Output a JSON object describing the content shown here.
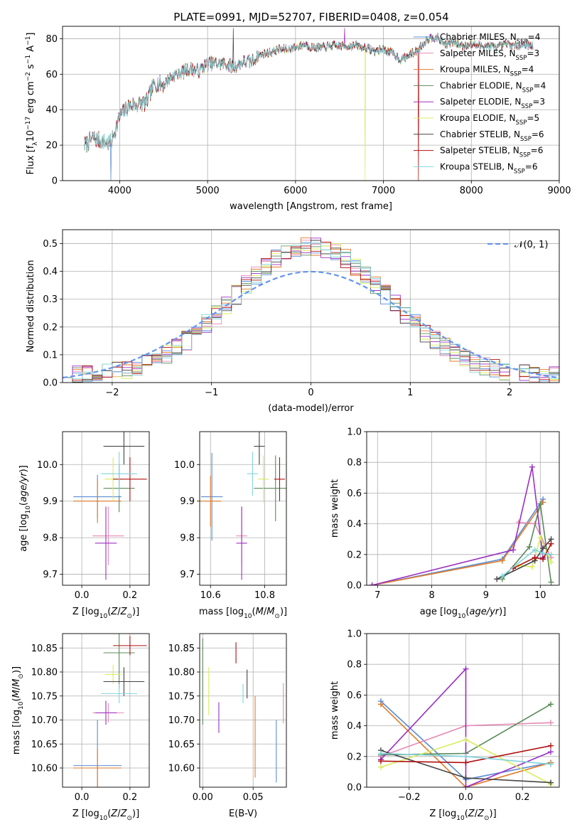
{
  "figure": {
    "title": "PLATE=0991, MJD=52707, FIBERID=0408, z=0.054"
  },
  "colors": {
    "Chabrier MILES": "#5b8bd6",
    "Salpeter MILES": "#e78ab5",
    "Kroupa MILES": "#e07b28",
    "Chabrier ELODIE": "#5a8a5a",
    "Salpeter ELODIE": "#9b2fc4",
    "Kroupa ELODIE": "#d8ec5a",
    "Chabrier STELIB": "#444444",
    "Salpeter STELIB": "#b01010",
    "Kroupa STELIB": "#80d4dc",
    "gaussian": "#6495ed"
  },
  "chart_data": [
    {
      "type": "line",
      "id": "spectrum",
      "xlabel": "wavelength [Angstrom, rest frame]",
      "ylabel": "Flux [fλ10⁻¹⁷ erg cm⁻² s⁻¹ A⁻¹]",
      "xlim": [
        3350,
        9000
      ],
      "ylim": [
        0,
        87
      ],
      "xticks": [
        4000,
        5000,
        6000,
        7000,
        8000,
        9000
      ],
      "yticks": [
        0,
        20,
        40,
        60,
        80
      ],
      "legend_loc": "upper right",
      "series": [
        {
          "name": "Chabrier MILES, N",
          "sub": "SSP",
          "suffix": "=4"
        },
        {
          "name": "Salpeter MILES, N",
          "sub": "SSP",
          "suffix": "=3"
        },
        {
          "name": "Kroupa MILES, N",
          "sub": "SSP",
          "suffix": "=4"
        },
        {
          "name": "Chabrier ELODIE, N",
          "sub": "SSP",
          "suffix": "=4"
        },
        {
          "name": "Salpeter ELODIE, N",
          "sub": "SSP",
          "suffix": "=3"
        },
        {
          "name": "Kroupa ELODIE, N",
          "sub": "SSP",
          "suffix": "=5"
        },
        {
          "name": "Chabrier STELIB, N",
          "sub": "SSP",
          "suffix": "=6"
        },
        {
          "name": "Salpeter STELIB, N",
          "sub": "SSP",
          "suffix": "=6"
        },
        {
          "name": "Kroupa STELIB, N",
          "sub": "SSP",
          "suffix": "=6"
        }
      ],
      "continuum": [
        [
          3600,
          20
        ],
        [
          3700,
          24
        ],
        [
          3800,
          22
        ],
        [
          3900,
          21
        ],
        [
          4000,
          36
        ],
        [
          4100,
          42
        ],
        [
          4200,
          43
        ],
        [
          4300,
          44
        ],
        [
          4400,
          55
        ],
        [
          4500,
          54
        ],
        [
          4600,
          59
        ],
        [
          4700,
          61
        ],
        [
          4800,
          63
        ],
        [
          4900,
          62
        ],
        [
          5000,
          66
        ],
        [
          5100,
          66
        ],
        [
          5200,
          66
        ],
        [
          5300,
          64
        ],
        [
          5400,
          67
        ],
        [
          5500,
          67
        ],
        [
          5600,
          71
        ],
        [
          5700,
          72
        ],
        [
          5800,
          74
        ],
        [
          5900,
          74
        ],
        [
          6000,
          75
        ],
        [
          6100,
          77
        ],
        [
          6200,
          75
        ],
        [
          6300,
          75
        ],
        [
          6400,
          76
        ],
        [
          6500,
          76
        ],
        [
          6600,
          76
        ],
        [
          6700,
          76
        ],
        [
          6800,
          75
        ],
        [
          6900,
          73
        ],
        [
          7000,
          74
        ],
        [
          7100,
          72
        ],
        [
          7200,
          68
        ],
        [
          7300,
          71
        ],
        [
          7400,
          74
        ],
        [
          7500,
          80
        ],
        [
          7600,
          81
        ],
        [
          7700,
          77
        ],
        [
          7800,
          78
        ],
        [
          7900,
          76
        ],
        [
          8000,
          77
        ],
        [
          8100,
          76
        ],
        [
          8200,
          76
        ],
        [
          8300,
          75
        ],
        [
          8400,
          77
        ],
        [
          8500,
          76
        ],
        [
          8600,
          77
        ],
        [
          8700,
          76
        ]
      ],
      "spikes": [
        {
          "x": 3900,
          "y": 0
        },
        {
          "x": 5290,
          "y": 86
        },
        {
          "x": 6560,
          "y": 86
        },
        {
          "x": 6790,
          "y": 0
        },
        {
          "x": 7400,
          "y": 0
        }
      ]
    },
    {
      "type": "step",
      "id": "residuals",
      "xlabel": "(data-model)/error",
      "ylabel": "Normed distribution",
      "xlim": [
        -2.5,
        2.5
      ],
      "ylim": [
        0,
        0.55
      ],
      "xticks": [
        -2,
        -1,
        0,
        1,
        2
      ],
      "yticks": [
        0.0,
        0.1,
        0.2,
        0.3,
        0.4,
        0.5
      ],
      "bin_edges_range": [
        -2.5,
        2.5
      ],
      "n_bins": 50,
      "legend": "𝒩(0, 1)",
      "gaussian": {
        "mu": 0,
        "sigma": 1
      }
    },
    {
      "type": "errorbar",
      "id": "age-vs-Z",
      "xlabel": "Z [log₁₀(Z/Z⊙)]",
      "ylabel": "age  [log₁₀(age/yr)]",
      "xlim": [
        -0.08,
        0.28
      ],
      "ylim": [
        9.67,
        10.09
      ],
      "xticks": [
        0.0,
        0.2
      ],
      "yticks": [
        9.7,
        9.8,
        9.9,
        10.0
      ],
      "points": [
        {
          "model": "Chabrier MILES",
          "x": 0.065,
          "xerr": 0.1,
          "y": 9.912,
          "yerr": 0.06
        },
        {
          "model": "Salpeter MILES",
          "x": 0.11,
          "xerr": 0.065,
          "y": 9.805,
          "yerr": 0.08
        },
        {
          "model": "Kroupa MILES",
          "x": 0.065,
          "xerr": 0.1,
          "y": 9.9,
          "yerr": 0.06
        },
        {
          "model": "Chabrier ELODIE",
          "x": 0.155,
          "xerr": 0.065,
          "y": 9.935,
          "yerr": 0.065
        },
        {
          "model": "Salpeter ELODIE",
          "x": 0.1,
          "xerr": 0.045,
          "y": 9.785,
          "yerr": 0.1
        },
        {
          "model": "Kroupa ELODIE",
          "x": 0.13,
          "xerr": 0.035,
          "y": 9.96,
          "yerr": 0.06
        },
        {
          "model": "Chabrier STELIB",
          "x": 0.175,
          "xerr": 0.085,
          "y": 10.05,
          "yerr": 0.05
        },
        {
          "model": "Salpeter STELIB",
          "x": 0.2,
          "xerr": 0.07,
          "y": 9.96,
          "yerr": 0.06
        },
        {
          "model": "Kroupa STELIB",
          "x": 0.155,
          "xerr": 0.075,
          "y": 9.975,
          "yerr": 0.06
        }
      ]
    },
    {
      "type": "errorbar",
      "id": "age-vs-mass",
      "xlabel": "mass [log₁₀(M/M⊙)]",
      "ylabel": "",
      "xlim": [
        10.56,
        10.88
      ],
      "ylim": [
        9.67,
        10.09
      ],
      "xticks": [
        10.6,
        10.8
      ],
      "yticks": [
        9.7,
        9.8,
        9.9,
        10.0
      ],
      "points": [
        {
          "model": "Chabrier MILES",
          "x": 10.605,
          "xerr": 0.04,
          "y": 9.912,
          "yerr": 0.12
        },
        {
          "model": "Salpeter MILES",
          "x": 10.715,
          "xerr": 0.02,
          "y": 9.805,
          "yerr": 0.08
        },
        {
          "model": "Kroupa MILES",
          "x": 10.6,
          "xerr": 0.04,
          "y": 9.9,
          "yerr": 0.07
        },
        {
          "model": "Chabrier ELODIE",
          "x": 10.84,
          "xerr": 0.08,
          "y": 9.935,
          "yerr": 0.09
        },
        {
          "model": "Salpeter ELODIE",
          "x": 10.715,
          "xerr": 0.02,
          "y": 9.785,
          "yerr": 0.1
        },
        {
          "model": "Kroupa ELODIE",
          "x": 10.795,
          "xerr": 0.02,
          "y": 9.96,
          "yerr": 0.065
        },
        {
          "model": "Chabrier STELIB",
          "x": 10.78,
          "xerr": 0.02,
          "y": 10.05,
          "yerr": 0.05
        },
        {
          "model": "Salpeter STELIB",
          "x": 10.855,
          "xerr": 0.02,
          "y": 9.96,
          "yerr": 0.06
        },
        {
          "model": "Kroupa STELIB",
          "x": 10.755,
          "xerr": 0.02,
          "y": 9.975,
          "yerr": 0.06
        }
      ]
    },
    {
      "type": "line",
      "id": "weight-vs-age",
      "xlabel": "age  [log₁₀(age/yr)]",
      "ylabel": "mass weight",
      "xlim": [
        6.8,
        10.35
      ],
      "ylim": [
        0,
        1.0
      ],
      "xticks": [
        7,
        8,
        9,
        10
      ],
      "yticks": [
        0.0,
        0.2,
        0.4,
        0.6,
        0.8,
        1.0
      ],
      "series": [
        {
          "model": "Chabrier MILES",
          "x": [
            6.9,
            9.3,
            10.05
          ],
          "y": [
            0.0,
            0.17,
            0.56
          ]
        },
        {
          "model": "Salpeter MILES",
          "x": [
            9.6,
            9.9,
            10.2
          ],
          "y": [
            0.41,
            0.4,
            0.18
          ]
        },
        {
          "model": "Kroupa MILES",
          "x": [
            6.9,
            9.3,
            10.05
          ],
          "y": [
            0.0,
            0.16,
            0.54
          ]
        },
        {
          "model": "Chabrier ELODIE",
          "x": [
            9.3,
            9.8,
            10.0,
            10.2
          ],
          "y": [
            0.04,
            0.25,
            0.53,
            0.02
          ]
        },
        {
          "model": "Salpeter ELODIE",
          "x": [
            6.9,
            9.5,
            9.85,
            10.05
          ],
          "y": [
            0.0,
            0.23,
            0.77,
            0.18
          ]
        },
        {
          "model": "Kroupa ELODIE",
          "x": [
            9.6,
            9.85,
            10.0,
            10.2
          ],
          "y": [
            0.13,
            0.12,
            0.31,
            0.15
          ]
        },
        {
          "model": "Chabrier STELIB",
          "x": [
            9.2,
            9.9,
            10.05,
            10.2
          ],
          "y": [
            0.04,
            0.16,
            0.24,
            0.3
          ]
        },
        {
          "model": "Salpeter STELIB",
          "x": [
            9.5,
            9.9,
            10.05,
            10.2
          ],
          "y": [
            0.11,
            0.18,
            0.17,
            0.27
          ]
        },
        {
          "model": "Kroupa STELIB",
          "x": [
            9.3,
            9.9,
            10.05,
            10.2
          ],
          "y": [
            0.06,
            0.23,
            0.21,
            0.2
          ]
        }
      ]
    },
    {
      "type": "errorbar",
      "id": "mass-vs-Z",
      "xlabel": "Z [log₁₀(Z/Z⊙)]",
      "ylabel": "mass [log₁₀(M/M⊙)]",
      "xlim": [
        -0.08,
        0.28
      ],
      "ylim": [
        10.56,
        10.88
      ],
      "xticks": [
        0.0,
        0.2
      ],
      "yticks": [
        10.6,
        10.65,
        10.7,
        10.75,
        10.8,
        10.85
      ],
      "points": [
        {
          "model": "Chabrier MILES",
          "x": 0.065,
          "xerr": 0.1,
          "y": 10.605,
          "yerr": 0.095
        },
        {
          "model": "Salpeter MILES",
          "x": 0.11,
          "xerr": 0.065,
          "y": 10.715,
          "yerr": 0.02
        },
        {
          "model": "Kroupa MILES",
          "x": 0.065,
          "xerr": 0.1,
          "y": 10.6,
          "yerr": 0.04
        },
        {
          "model": "Chabrier ELODIE",
          "x": 0.155,
          "xerr": 0.065,
          "y": 10.84,
          "yerr": 0.075
        },
        {
          "model": "Salpeter ELODIE",
          "x": 0.1,
          "xerr": 0.045,
          "y": 10.715,
          "yerr": 0.025
        },
        {
          "model": "Kroupa ELODIE",
          "x": 0.13,
          "xerr": 0.035,
          "y": 10.795,
          "yerr": 0.02
        },
        {
          "model": "Chabrier STELIB",
          "x": 0.175,
          "xerr": 0.085,
          "y": 10.78,
          "yerr": 0.03
        },
        {
          "model": "Salpeter STELIB",
          "x": 0.2,
          "xerr": 0.07,
          "y": 10.855,
          "yerr": 0.02
        },
        {
          "model": "Kroupa STELIB",
          "x": 0.155,
          "xerr": 0.075,
          "y": 10.755,
          "yerr": 0.02
        }
      ]
    },
    {
      "type": "errorbar",
      "id": "mass-vs-EBV",
      "xlabel": "E(B-V)",
      "ylabel": "",
      "xlim": [
        -0.003,
        0.083
      ],
      "ylim": [
        10.56,
        10.88
      ],
      "xticks": [
        0.0,
        0.05
      ],
      "yticks": [
        10.6,
        10.65,
        10.7,
        10.75,
        10.8,
        10.85
      ],
      "points": [
        {
          "model": "Chabrier MILES",
          "x": 0.073,
          "y": 10.635,
          "yerr": 0.065
        },
        {
          "model": "Salpeter MILES",
          "x": 0.08,
          "y": 10.735,
          "yerr": 0.042
        },
        {
          "model": "Kroupa MILES",
          "x": 0.052,
          "y": 10.665,
          "yerr": 0.085
        },
        {
          "model": "Chabrier ELODIE",
          "x": 0.0,
          "y": 10.78,
          "yerr": 0.09
        },
        {
          "model": "Salpeter ELODIE",
          "x": 0.016,
          "y": 10.705,
          "yerr": 0.032
        },
        {
          "model": "Kroupa ELODIE",
          "x": 0.006,
          "y": 10.76,
          "yerr": 0.05
        },
        {
          "model": "Chabrier STELIB",
          "x": 0.044,
          "y": 10.775,
          "yerr": 0.03
        },
        {
          "model": "Salpeter STELIB",
          "x": 0.033,
          "y": 10.84,
          "yerr": 0.022
        },
        {
          "model": "Kroupa STELIB",
          "x": 0.04,
          "y": 10.755,
          "yerr": 0.02
        }
      ]
    },
    {
      "type": "line",
      "id": "weight-vs-Z",
      "xlabel": "Z [log₁₀(Z/Z⊙)]",
      "ylabel": "mass weight",
      "xlim": [
        -0.35,
        0.33
      ],
      "ylim": [
        0,
        1.0
      ],
      "xticks": [
        -0.2,
        0.0,
        0.2
      ],
      "yticks": [
        0.0,
        0.2,
        0.4,
        0.6,
        0.8,
        1.0
      ],
      "series": [
        {
          "model": "Chabrier MILES",
          "x": [
            -0.3,
            0.0,
            0.3
          ],
          "y": [
            0.56,
            0.05,
            0.16
          ]
        },
        {
          "model": "Salpeter MILES",
          "x": [
            -0.3,
            0.0,
            0.3
          ],
          "y": [
            0.2,
            0.4,
            0.42
          ]
        },
        {
          "model": "Kroupa MILES",
          "x": [
            -0.3,
            0.0,
            0.3
          ],
          "y": [
            0.54,
            0.0,
            0.16
          ]
        },
        {
          "model": "Chabrier ELODIE",
          "x": [
            -0.3,
            0.0,
            0.3
          ],
          "y": [
            0.21,
            0.22,
            0.54
          ]
        },
        {
          "model": "Salpeter ELODIE",
          "x": [
            -0.3,
            0.0,
            0.0,
            0.3
          ],
          "y": [
            0.18,
            0.77,
            0.0,
            0.23
          ]
        },
        {
          "model": "Kroupa ELODIE",
          "x": [
            -0.3,
            0.0,
            0.3
          ],
          "y": [
            0.13,
            0.31,
            0.02
          ]
        },
        {
          "model": "Chabrier STELIB",
          "x": [
            -0.3,
            0.0,
            0.3
          ],
          "y": [
            0.24,
            0.06,
            0.03
          ]
        },
        {
          "model": "Salpeter STELIB",
          "x": [
            -0.3,
            0.0,
            0.3
          ],
          "y": [
            0.17,
            0.16,
            0.27
          ]
        },
        {
          "model": "Kroupa STELIB",
          "x": [
            -0.3,
            0.0,
            0.3
          ],
          "y": [
            0.22,
            0.2,
            0.15
          ]
        }
      ]
    }
  ]
}
